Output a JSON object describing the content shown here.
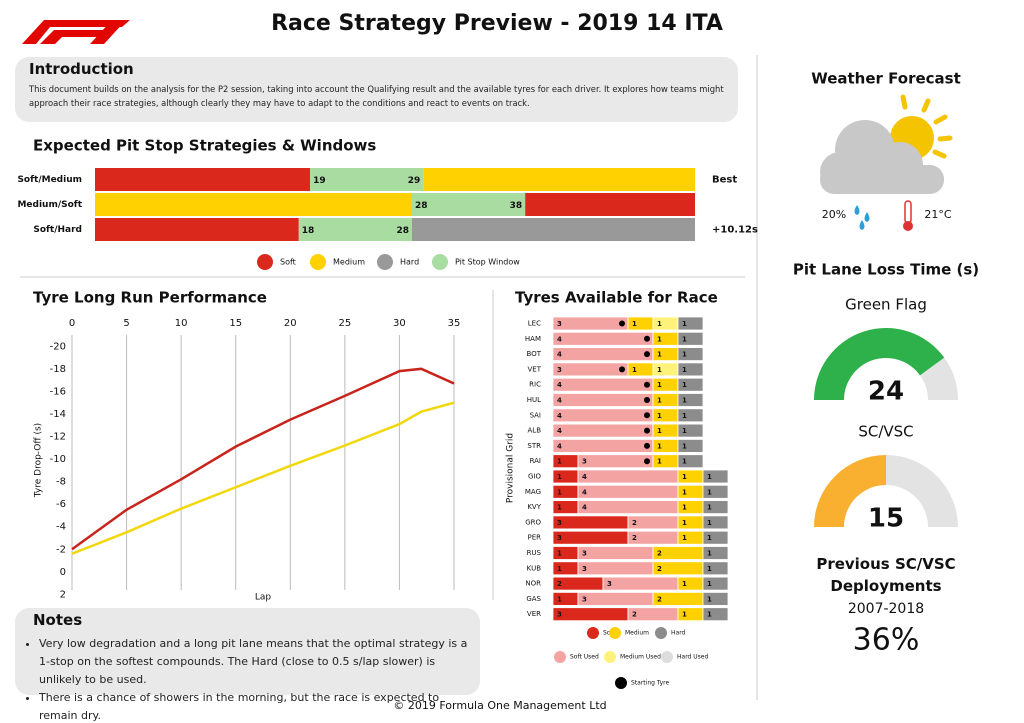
{
  "header": {
    "title": "Race Strategy Preview - 2019 14 ITA"
  },
  "intro": {
    "title": "Introduction",
    "text": "This document builds on the analysis for the P2 session, taking into account the Qualifying result and the available tyres for each driver. It explores how teams might approach their race strategies, although clearly they may have to adapt to the conditions and react to events on track."
  },
  "strategies": {
    "title": "Expected Pit Stop Strategies & Windows",
    "xlim": [
      0,
      53
    ],
    "legend": [
      {
        "label": "Soft",
        "color": "#da291c"
      },
      {
        "label": "Medium",
        "color": "#ffd100"
      },
      {
        "label": "Hard",
        "color": "#999999"
      },
      {
        "label": "Pit Stop Window",
        "color": "#a8dca0"
      }
    ],
    "rows": [
      {
        "name": "Soft/Medium",
        "stints": [
          "Soft",
          "Medium"
        ],
        "window": [
          19,
          29
        ],
        "note": "Best"
      },
      {
        "name": "Medium/Soft",
        "stints": [
          "Medium",
          "Soft"
        ],
        "window": [
          28,
          38
        ]
      },
      {
        "name": "Soft/Hard",
        "stints": [
          "Soft",
          "Hard"
        ],
        "window": [
          18,
          28
        ],
        "note": "+10.12s"
      }
    ]
  },
  "longrun": {
    "title": "Tyre Long Run Performance",
    "type": "line",
    "xlabel": "Lap",
    "ylabel": "Tyre Drop-Off (s)",
    "x": [
      0,
      5,
      10,
      15,
      20,
      25,
      30,
      32,
      35
    ],
    "series": [
      {
        "color": "#c8241c",
        "values": [
          -2,
          -5.5,
          -8.2,
          -11.1,
          -13.5,
          -15.6,
          -17.8,
          -18,
          -16.7
        ]
      },
      {
        "color": "#f2d70a",
        "values": [
          -1.6,
          -3.5,
          -5.6,
          -7.5,
          -9.4,
          -11.2,
          -13.1,
          -14.2,
          -15
        ]
      }
    ],
    "xlim": [
      0,
      35
    ],
    "xticks": [
      0,
      5,
      10,
      15,
      20,
      25,
      30,
      35
    ],
    "ylim": [
      -21,
      2.5
    ],
    "yticks": [
      -20,
      -18,
      -16,
      -14,
      -12,
      -10,
      -8,
      -6,
      -4,
      -2,
      0,
      2
    ],
    "grid": true
  },
  "tyres": {
    "title": "Tyres Available for Race",
    "axis_label": "Provisional Grid",
    "start_label": "Starting Tyre",
    "legend": [
      {
        "label": "Soft",
        "color": "#da291c"
      },
      {
        "label": "Medium",
        "color": "#ffd100"
      },
      {
        "label": "Hard",
        "color": "#8c8c8c"
      },
      {
        "label": "Soft Used",
        "color": "#f4a3a3"
      },
      {
        "label": "Medium Used",
        "color": "#fff27a"
      },
      {
        "label": "Hard Used",
        "color": "#dddddd"
      }
    ],
    "drivers": [
      {
        "code": "LEC",
        "sets": [
          {
            "type": "Soft Used",
            "count": 3,
            "start": true
          },
          {
            "type": "Medium",
            "count": 1
          },
          {
            "type": "Medium Used",
            "count": 1
          },
          {
            "type": "Hard",
            "count": 1
          }
        ]
      },
      {
        "code": "HAM",
        "sets": [
          {
            "type": "Soft Used",
            "count": 4,
            "start": true
          },
          {
            "type": "Medium",
            "count": 1
          },
          {
            "type": "Hard",
            "count": 1
          }
        ]
      },
      {
        "code": "BOT",
        "sets": [
          {
            "type": "Soft Used",
            "count": 4,
            "start": true
          },
          {
            "type": "Medium",
            "count": 1
          },
          {
            "type": "Hard",
            "count": 1
          }
        ]
      },
      {
        "code": "VET",
        "sets": [
          {
            "type": "Soft Used",
            "count": 3,
            "start": true
          },
          {
            "type": "Medium",
            "count": 1
          },
          {
            "type": "Medium Used",
            "count": 1
          },
          {
            "type": "Hard",
            "count": 1
          }
        ]
      },
      {
        "code": "RIC",
        "sets": [
          {
            "type": "Soft Used",
            "count": 4,
            "start": true
          },
          {
            "type": "Medium",
            "count": 1
          },
          {
            "type": "Hard",
            "count": 1
          }
        ]
      },
      {
        "code": "HUL",
        "sets": [
          {
            "type": "Soft Used",
            "count": 4,
            "start": true
          },
          {
            "type": "Medium",
            "count": 1
          },
          {
            "type": "Hard",
            "count": 1
          }
        ]
      },
      {
        "code": "SAI",
        "sets": [
          {
            "type": "Soft Used",
            "count": 4,
            "start": true
          },
          {
            "type": "Medium",
            "count": 1
          },
          {
            "type": "Hard",
            "count": 1
          }
        ]
      },
      {
        "code": "ALB",
        "sets": [
          {
            "type": "Soft Used",
            "count": 4,
            "start": true
          },
          {
            "type": "Medium",
            "count": 1
          },
          {
            "type": "Hard",
            "count": 1
          }
        ]
      },
      {
        "code": "STR",
        "sets": [
          {
            "type": "Soft Used",
            "count": 4,
            "start": true
          },
          {
            "type": "Medium",
            "count": 1
          },
          {
            "type": "Hard",
            "count": 1
          }
        ]
      },
      {
        "code": "RAI",
        "sets": [
          {
            "type": "Soft",
            "count": 1
          },
          {
            "type": "Soft Used",
            "count": 3,
            "start": true
          },
          {
            "type": "Medium",
            "count": 1
          },
          {
            "type": "Hard",
            "count": 1
          }
        ]
      },
      {
        "code": "GIO",
        "sets": [
          {
            "type": "Soft",
            "count": 1
          },
          {
            "type": "Soft Used",
            "count": 4
          },
          {
            "type": "Medium",
            "count": 1
          },
          {
            "type": "Hard",
            "count": 1
          }
        ]
      },
      {
        "code": "MAG",
        "sets": [
          {
            "type": "Soft",
            "count": 1
          },
          {
            "type": "Soft Used",
            "count": 4
          },
          {
            "type": "Medium",
            "count": 1
          },
          {
            "type": "Hard",
            "count": 1
          }
        ]
      },
      {
        "code": "KVY",
        "sets": [
          {
            "type": "Soft",
            "count": 1
          },
          {
            "type": "Soft Used",
            "count": 4
          },
          {
            "type": "Medium",
            "count": 1
          },
          {
            "type": "Hard",
            "count": 1
          }
        ]
      },
      {
        "code": "GRO",
        "sets": [
          {
            "type": "Soft",
            "count": 3
          },
          {
            "type": "Soft Used",
            "count": 2
          },
          {
            "type": "Medium",
            "count": 1
          },
          {
            "type": "Hard",
            "count": 1
          }
        ]
      },
      {
        "code": "PER",
        "sets": [
          {
            "type": "Soft",
            "count": 3
          },
          {
            "type": "Soft Used",
            "count": 2
          },
          {
            "type": "Medium",
            "count": 1
          },
          {
            "type": "Hard",
            "count": 1
          }
        ]
      },
      {
        "code": "RUS",
        "sets": [
          {
            "type": "Soft",
            "count": 1
          },
          {
            "type": "Soft Used",
            "count": 3
          },
          {
            "type": "Medium",
            "count": 2
          },
          {
            "type": "Hard",
            "count": 1
          }
        ]
      },
      {
        "code": "KUB",
        "sets": [
          {
            "type": "Soft",
            "count": 1
          },
          {
            "type": "Soft Used",
            "count": 3
          },
          {
            "type": "Medium",
            "count": 2
          },
          {
            "type": "Hard",
            "count": 1
          }
        ]
      },
      {
        "code": "NOR",
        "sets": [
          {
            "type": "Soft",
            "count": 2
          },
          {
            "type": "Soft Used",
            "count": 3
          },
          {
            "type": "Medium",
            "count": 1
          },
          {
            "type": "Hard",
            "count": 1
          }
        ]
      },
      {
        "code": "GAS",
        "sets": [
          {
            "type": "Soft",
            "count": 1
          },
          {
            "type": "Soft Used",
            "count": 3
          },
          {
            "type": "Medium",
            "count": 2
          },
          {
            "type": "Hard",
            "count": 1
          }
        ]
      },
      {
        "code": "VER",
        "sets": [
          {
            "type": "Soft",
            "count": 3
          },
          {
            "type": "Soft Used",
            "count": 2
          },
          {
            "type": "Medium",
            "count": 1
          },
          {
            "type": "Hard",
            "count": 1
          }
        ]
      }
    ]
  },
  "notes": {
    "title": "Notes",
    "items": [
      "Very low degradation and a long pit lane means that the optimal strategy is a 1-stop on the softest compounds. The Hard (close to 0.5 s/lap slower) is unlikely to be used.",
      "There is a chance of showers in the morning, but the race is expected to remain dry."
    ]
  },
  "weather": {
    "title": "Weather Forecast",
    "rain": "20%",
    "temperature": "21°C"
  },
  "pitlane": {
    "title": "Pit Lane Loss Time (s)",
    "range": [
      0,
      30
    ],
    "gauges": [
      {
        "label": "Green Flag",
        "value": 24,
        "color": "#2eb14a"
      },
      {
        "label": "SC/VSC",
        "value": 15,
        "color": "#f9b031"
      }
    ]
  },
  "deployments": {
    "title": "Previous SC/VSC Deployments",
    "period": "2007-2018",
    "value": "36%"
  },
  "footer": {
    "text": "© 2019 Formula One Management Ltd"
  }
}
